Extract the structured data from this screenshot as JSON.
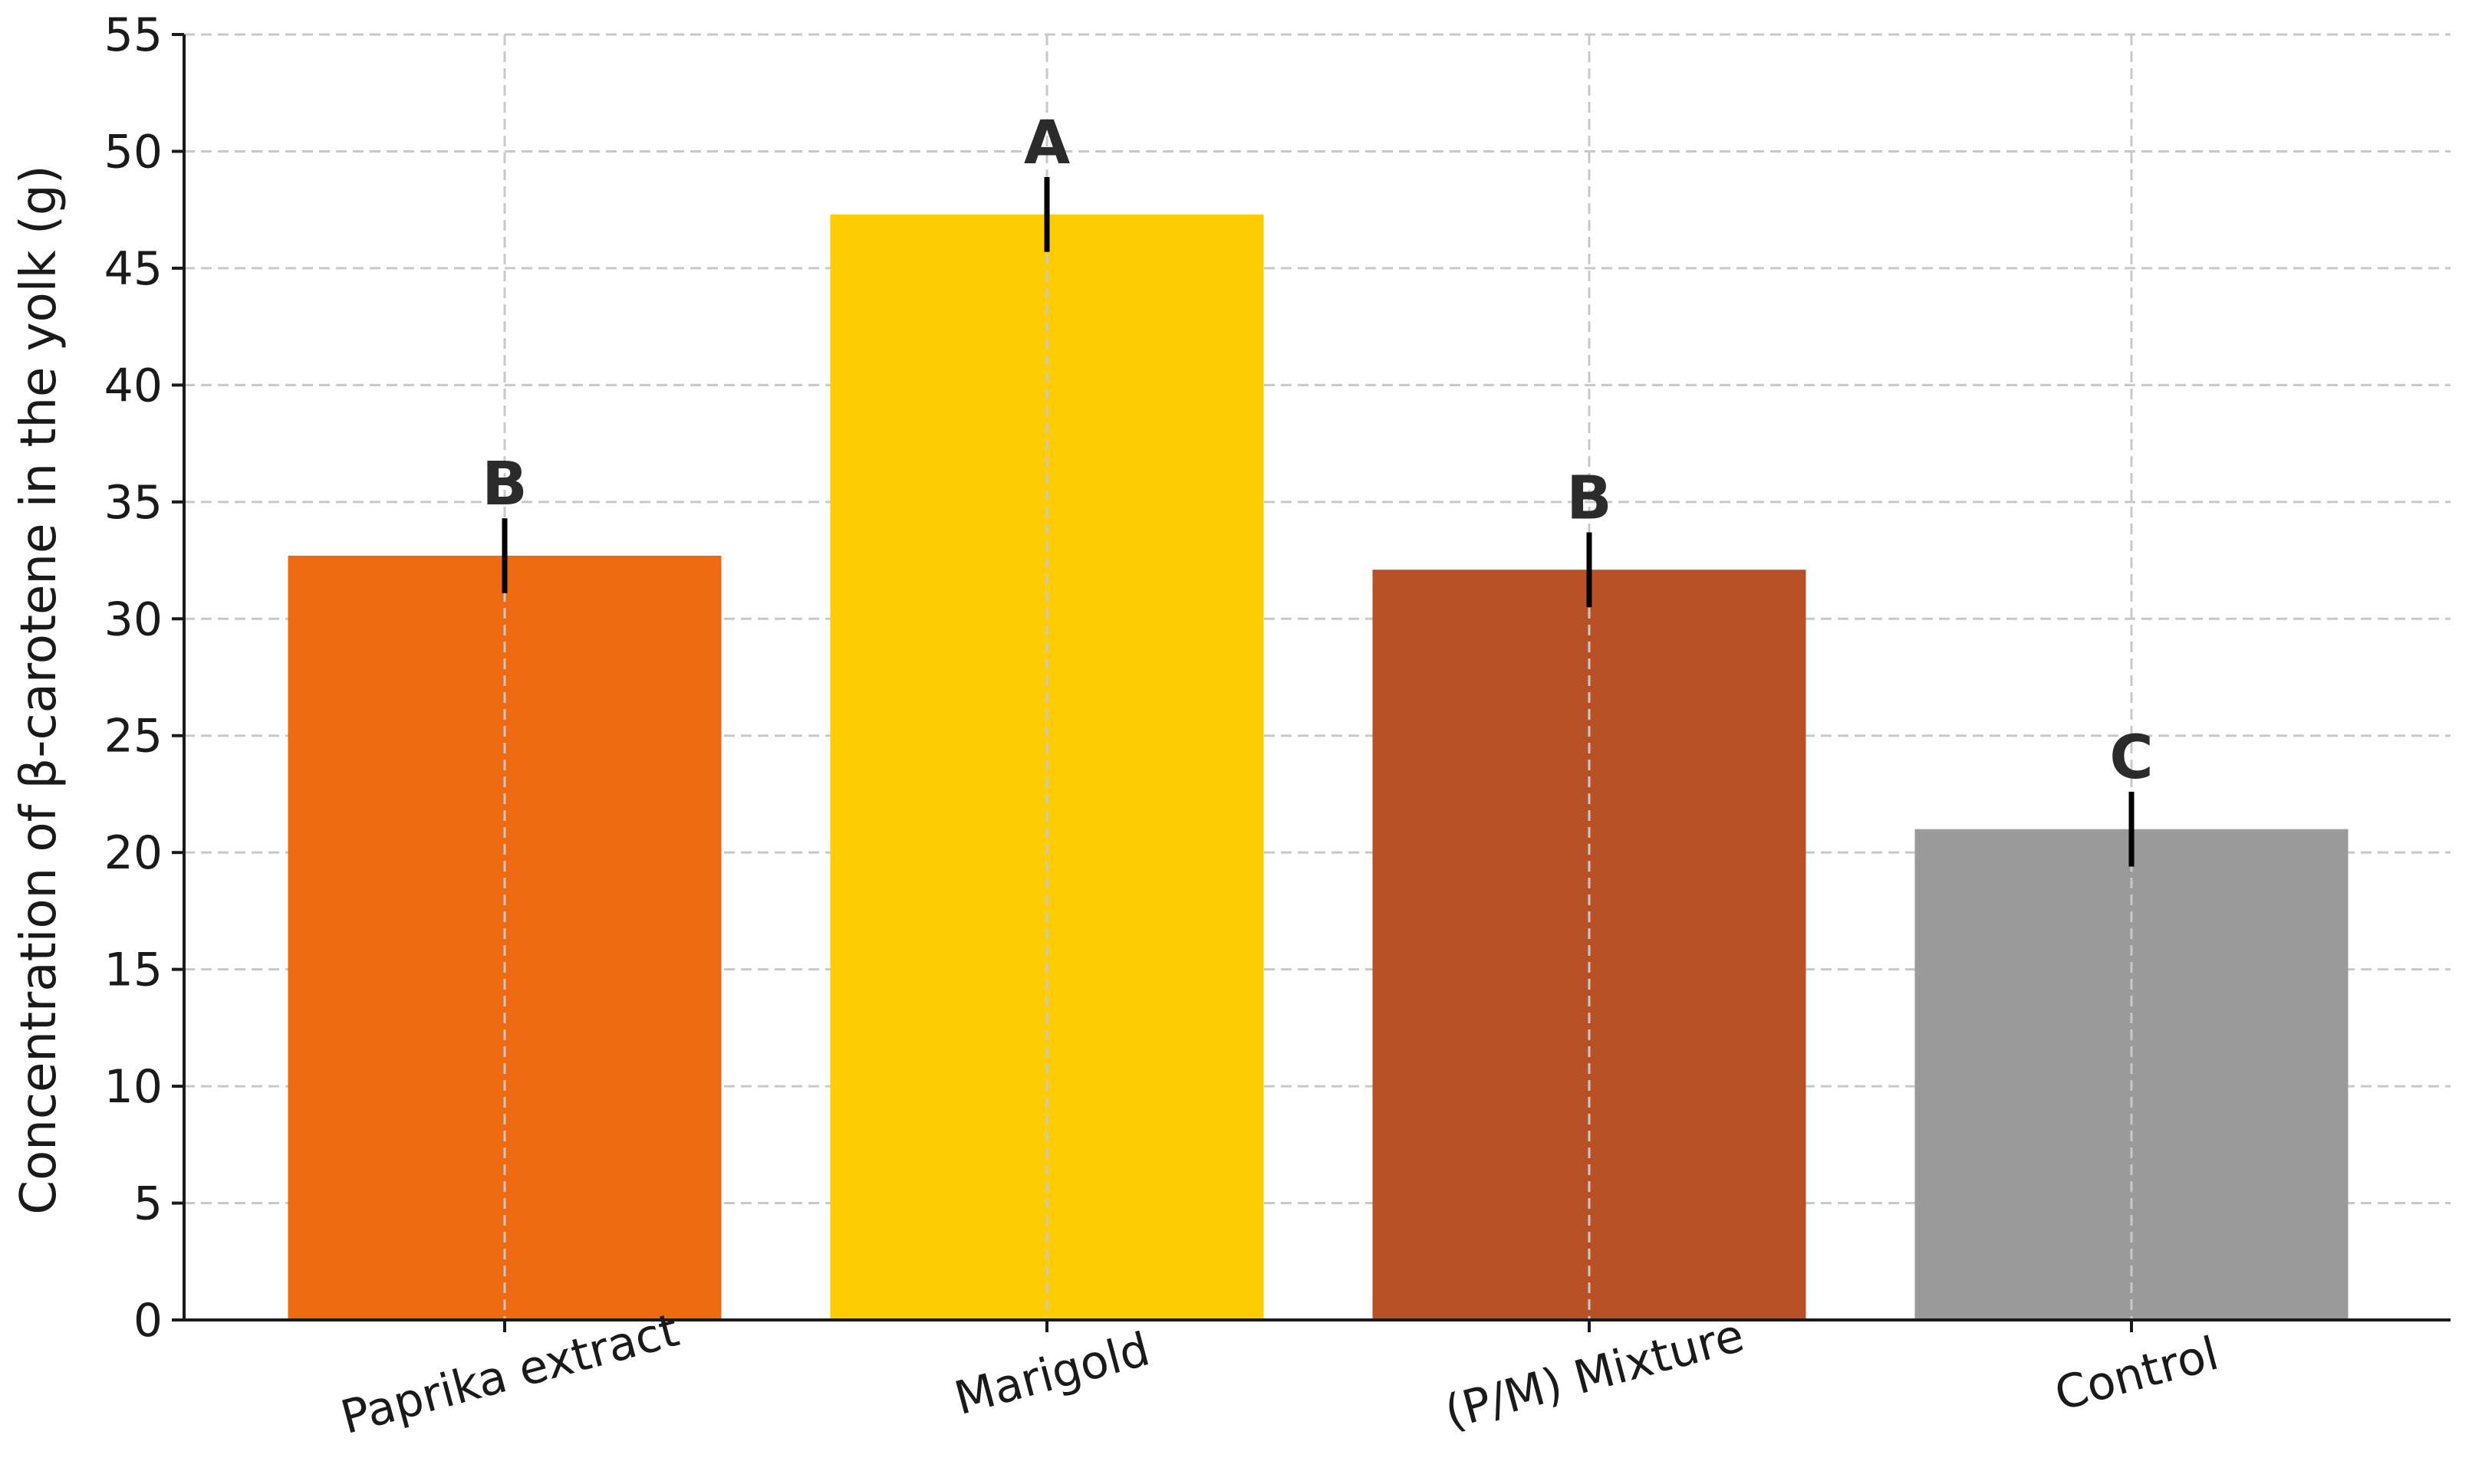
{
  "chart_data": {
    "type": "bar",
    "title": "",
    "xlabel": "",
    "ylabel": "Concentration of β-carotene in the yolk (g)",
    "ylim": [
      0,
      55
    ],
    "yticks": [
      0,
      5,
      10,
      15,
      20,
      25,
      30,
      35,
      40,
      45,
      50,
      55
    ],
    "grid": true,
    "categories": [
      "Paprika extract",
      "Marigold",
      "(P/M) Mixture",
      "Control"
    ],
    "values": [
      32.7,
      47.3,
      32.1,
      21.0
    ],
    "errors": [
      1.6,
      1.6,
      1.6,
      1.6
    ],
    "significance": [
      "B",
      "A",
      "B",
      "C"
    ],
    "colors": [
      "#ee6a10",
      "#fecc02",
      "#b85226",
      "#9a9a9a"
    ]
  }
}
